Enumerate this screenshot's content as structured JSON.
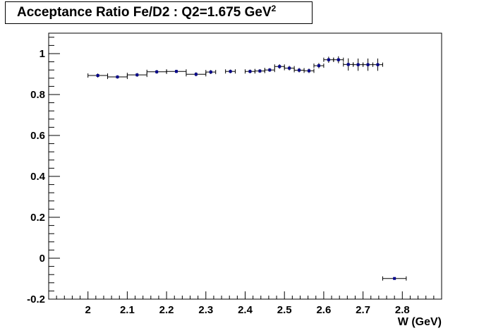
{
  "title": {
    "text": "Acceptance Ratio Fe/D2 : Q2=1.675 GeV",
    "superscript": "2"
  },
  "chart_data": {
    "type": "scatter",
    "title": "Acceptance Ratio Fe/D2 : Q2=1.675 GeV²",
    "xlabel": "W (GeV)",
    "ylabel": "",
    "xlim": [
      1.9,
      2.9
    ],
    "ylim": [
      -0.2,
      1.1
    ],
    "grid": false,
    "x_ticks": [
      "2",
      "2.1",
      "2.2",
      "2.3",
      "2.4",
      "2.5",
      "2.6",
      "2.7",
      "2.8"
    ],
    "y_ticks": [
      "-0.2",
      "0",
      "0.2",
      "0.4",
      "0.6",
      "0.8",
      "1"
    ],
    "marker_color": "#00008b",
    "series": [
      {
        "x": [
          2.025,
          2.075,
          2.125,
          2.175,
          2.225,
          2.275,
          2.3125,
          2.3625,
          2.4125,
          2.4375,
          2.4625,
          2.4875,
          2.5125,
          2.5375,
          2.5625,
          2.5875,
          2.6125,
          2.6375,
          2.6625,
          2.6875,
          2.7125,
          2.7375,
          2.78
        ],
        "y": [
          0.893,
          0.886,
          0.896,
          0.911,
          0.913,
          0.899,
          0.91,
          0.913,
          0.913,
          0.915,
          0.92,
          0.937,
          0.929,
          0.919,
          0.916,
          0.941,
          0.97,
          0.97,
          0.947,
          0.946,
          0.946,
          0.946,
          -0.099
        ],
        "x_err": [
          0.025,
          0.025,
          0.025,
          0.025,
          0.025,
          0.025,
          0.0125,
          0.0125,
          0.0125,
          0.0125,
          0.0125,
          0.0125,
          0.0125,
          0.0125,
          0.0125,
          0.0125,
          0.0125,
          0.0125,
          0.0125,
          0.0125,
          0.0125,
          0.0125,
          0.03
        ],
        "y_err": [
          0.01,
          0.008,
          0.009,
          0.009,
          0.008,
          0.01,
          0.01,
          0.009,
          0.009,
          0.009,
          0.009,
          0.011,
          0.011,
          0.011,
          0.011,
          0.013,
          0.015,
          0.017,
          0.03,
          0.03,
          0.03,
          0.03,
          0.004
        ]
      }
    ]
  }
}
